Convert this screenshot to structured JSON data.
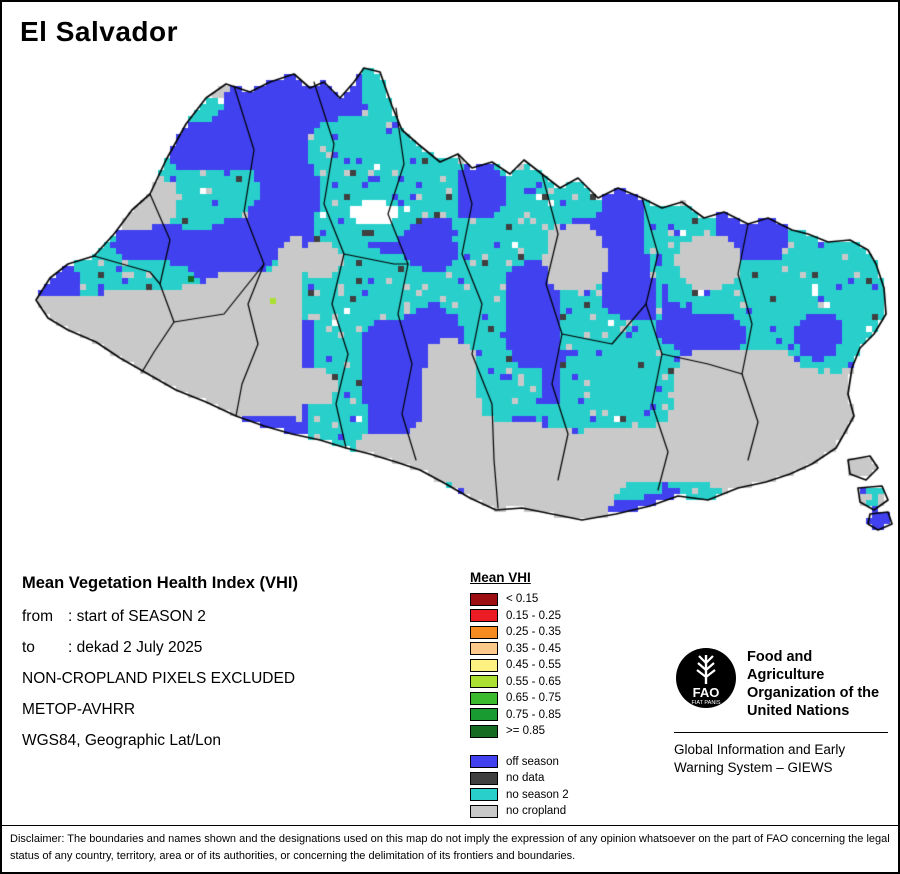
{
  "header": {
    "title": "El Salvador"
  },
  "details": {
    "heading": "Mean Vegetation Health Index (VHI)",
    "from_label": "from",
    "from_value": ": start of SEASON 2",
    "to_label": "to",
    "to_value": ": dekad 2 July 2025",
    "exclusion": "NON-CROPLAND PIXELS EXCLUDED",
    "sensor": "METOP-AVHRR",
    "projection": "WGS84, Geographic Lat/Lon"
  },
  "legend": {
    "title": "Mean VHI",
    "classes": [
      {
        "label": "< 0.15",
        "color": "#9c0d12"
      },
      {
        "label": "0.15 - 0.25",
        "color": "#ec1c24"
      },
      {
        "label": "0.25 - 0.35",
        "color": "#f68b1f"
      },
      {
        "label": "0.35 - 0.45",
        "color": "#fdc98a"
      },
      {
        "label": "0.45 - 0.55",
        "color": "#fdf181"
      },
      {
        "label": "0.55 - 0.65",
        "color": "#abe032"
      },
      {
        "label": "0.65 - 0.75",
        "color": "#3cba2e"
      },
      {
        "label": "0.75 - 0.85",
        "color": "#199b31"
      },
      {
        "label": ">= 0.85",
        "color": "#156b21"
      }
    ],
    "categories": [
      {
        "label": "off season",
        "color": "#4141f0"
      },
      {
        "label": "no data",
        "color": "#3f3f3f"
      },
      {
        "label": "no season 2",
        "color": "#29d0cb"
      },
      {
        "label": "no cropland",
        "color": "#c9c9c9"
      }
    ]
  },
  "map": {
    "colors": {
      "off_season": "#4141f0",
      "no_data": "#3f3f3f",
      "no_season2": "#29d0cb",
      "no_cropland": "#c9c9c9",
      "boundary": "#000000",
      "spot_dark_green": "#156b21",
      "spot_yellow_green": "#abe032"
    }
  },
  "fao": {
    "logo_acronym": "FAO",
    "logo_motto": "FIAT PANIS",
    "org_lines": [
      "Food and Agriculture",
      "Organization of the",
      "United Nations"
    ],
    "giews_lines": [
      "Global Information and Early",
      "Warning System – GIEWS"
    ]
  },
  "disclaimer": "Disclaimer: The boundaries and names shown and the designations used on this map do not imply the expression of any opinion whatsoever on the part of FAO concerning the legal status of any country, territory, area or of its authorities, or concerning the delimitation of its frontiers and boundaries."
}
